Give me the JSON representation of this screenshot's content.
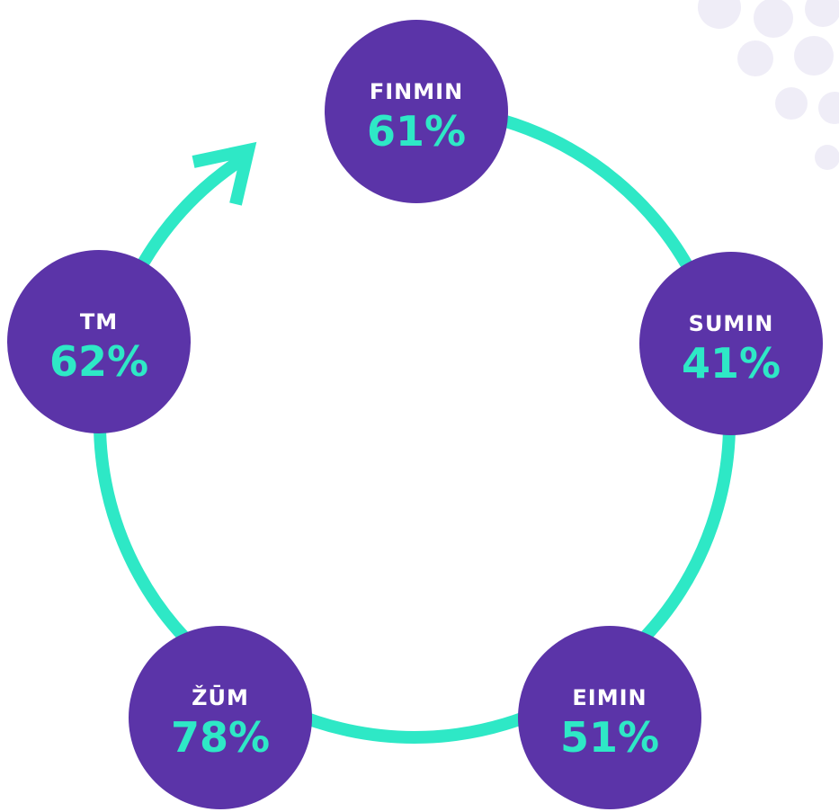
{
  "nodes": [
    {
      "label": "FINMIN",
      "value": "61%"
    },
    {
      "label": "SUMIN",
      "value": "41%"
    },
    {
      "label": "EIMIN",
      "value": "51%"
    },
    {
      "label": "ŽŪM",
      "value": "78%"
    },
    {
      "label": "TM",
      "value": "62%"
    }
  ]
}
